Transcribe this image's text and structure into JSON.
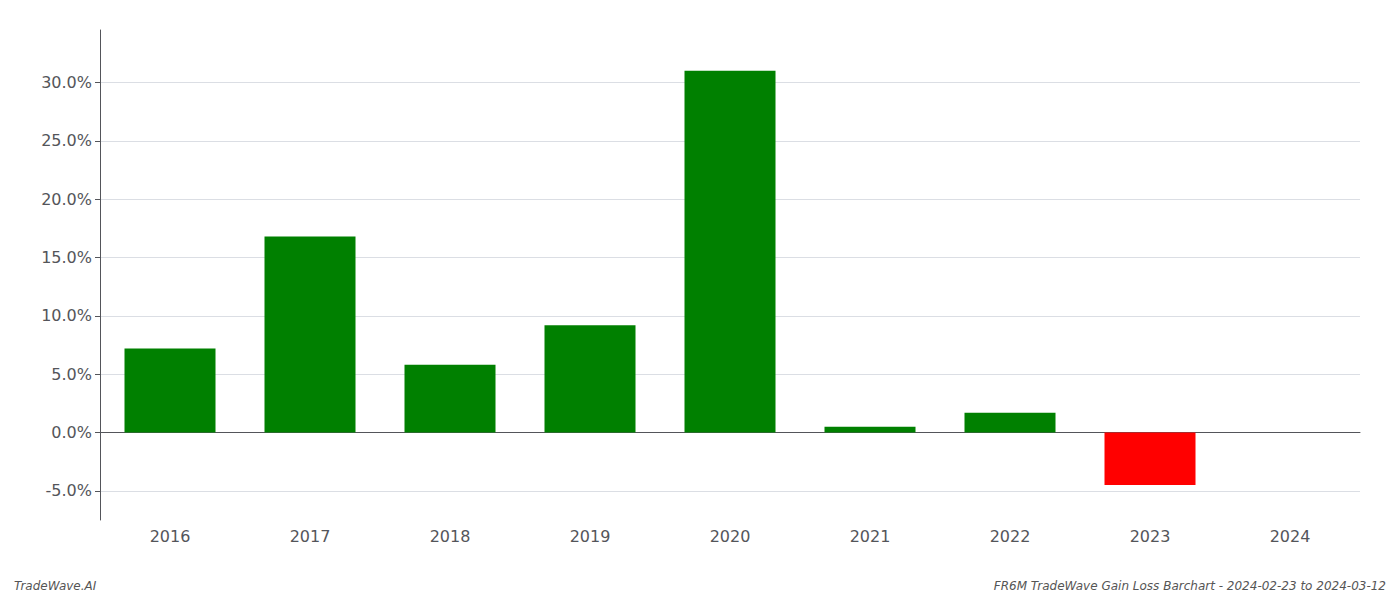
{
  "chart_data": {
    "type": "bar",
    "categories": [
      "2016",
      "2017",
      "2018",
      "2019",
      "2020",
      "2021",
      "2022",
      "2023",
      "2024"
    ],
    "values": [
      0.072,
      0.168,
      0.058,
      0.092,
      0.31,
      0.005,
      0.017,
      -0.045,
      null
    ],
    "colors": [
      "#008000",
      "#008000",
      "#008000",
      "#008000",
      "#008000",
      "#008000",
      "#008000",
      "#ff0000",
      null
    ],
    "ylim": [
      -0.075,
      0.345
    ],
    "yticks": [
      {
        "value": -0.05,
        "label": "-5.0%"
      },
      {
        "value": 0.0,
        "label": "0.0%"
      },
      {
        "value": 0.05,
        "label": "5.0%"
      },
      {
        "value": 0.1,
        "label": "10.0%"
      },
      {
        "value": 0.15,
        "label": "15.0%"
      },
      {
        "value": 0.2,
        "label": "20.0%"
      },
      {
        "value": 0.25,
        "label": "25.0%"
      },
      {
        "value": 0.3,
        "label": "30.0%"
      }
    ],
    "grid": true,
    "annotations": [
      "TradeWave.AI",
      "FR6M TradeWave Gain Loss Barchart - 2024-02-23 to 2024-03-12"
    ]
  }
}
